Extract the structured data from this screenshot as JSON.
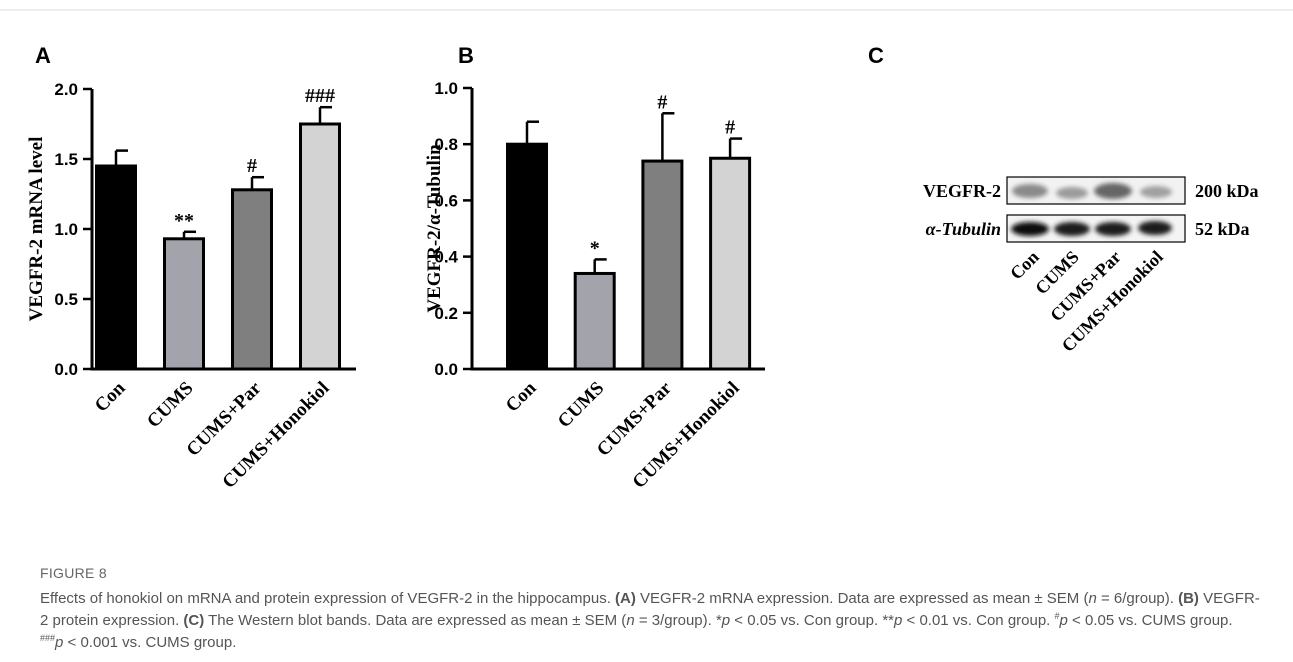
{
  "chart_data": [
    {
      "type": "bar",
      "panel": "A",
      "y_label": "VEGFR-2 mRNA level",
      "categories": [
        "Con",
        "CUMS",
        "CUMS+Par",
        "CUMS+Honokiol"
      ],
      "values": [
        1.45,
        0.93,
        1.28,
        1.75
      ],
      "errors": [
        0.11,
        0.05,
        0.09,
        0.12
      ],
      "annotations": [
        null,
        "**",
        "#",
        "###"
      ],
      "colors": [
        "#000000",
        "#a3a3ab",
        "#7f7f7f",
        "#d3d3d3"
      ],
      "ylim": [
        0,
        2.0
      ],
      "yticks": [
        {
          "value": 0,
          "label": "0.0"
        },
        {
          "value": 0.5,
          "label": "0.5"
        },
        {
          "value": 1.0,
          "label": "1.0"
        },
        {
          "value": 1.5,
          "label": "1.5"
        },
        {
          "value": 2.0,
          "label": "2.0"
        }
      ]
    },
    {
      "type": "bar",
      "panel": "B",
      "y_label": "VEGFR-2/α-Tubulin",
      "categories": [
        "Con",
        "CUMS",
        "CUMS+Par",
        "CUMS+Honokiol"
      ],
      "values": [
        0.8,
        0.34,
        0.74,
        0.75
      ],
      "errors": [
        0.08,
        0.05,
        0.17,
        0.07
      ],
      "annotations": [
        null,
        "*",
        "#",
        "#"
      ],
      "colors": [
        "#000000",
        "#a3a3ab",
        "#7f7f7f",
        "#d3d3d3"
      ],
      "ylim": [
        0,
        1.0
      ],
      "yticks": [
        {
          "value": 0,
          "label": "0.0"
        },
        {
          "value": 0.2,
          "label": "0.2"
        },
        {
          "value": 0.4,
          "label": "0.4"
        },
        {
          "value": 0.6,
          "label": "0.6"
        },
        {
          "value": 0.8,
          "label": "0.8"
        },
        {
          "value": 1.0,
          "label": "1.0"
        }
      ]
    }
  ],
  "panel_c": {
    "panel": "C",
    "rows": [
      "VEGFR-2",
      "α-Tubulin"
    ],
    "sizes": [
      "200 kDa",
      "52 kDa"
    ],
    "lanes": [
      "Con",
      "CUMS",
      "CUMS+Par",
      "CUMS+Honokiol"
    ]
  },
  "caption": {
    "label": "FIGURE 8",
    "segments": [
      "Effects of honokiol on mRNA and protein expression of VEGFR-2 in the hippocampus. ",
      "(A)",
      " VEGFR-2 mRNA expression. Data are expressed as mean ± SEM (",
      "n",
      " = 6/group). ",
      "(B)",
      " VEGFR-2 protein expression. ",
      "(C)",
      " The Western blot bands. Data are expressed as mean ± SEM (",
      "n",
      " = 3/group). *",
      "p",
      " < 0.05 vs. Con group. **",
      "p",
      " < 0.01 vs. Con group. ",
      "#",
      "p",
      " < 0.05 vs. CUMS group. ",
      "###",
      "p",
      " < 0.001 vs. CUMS group."
    ]
  }
}
